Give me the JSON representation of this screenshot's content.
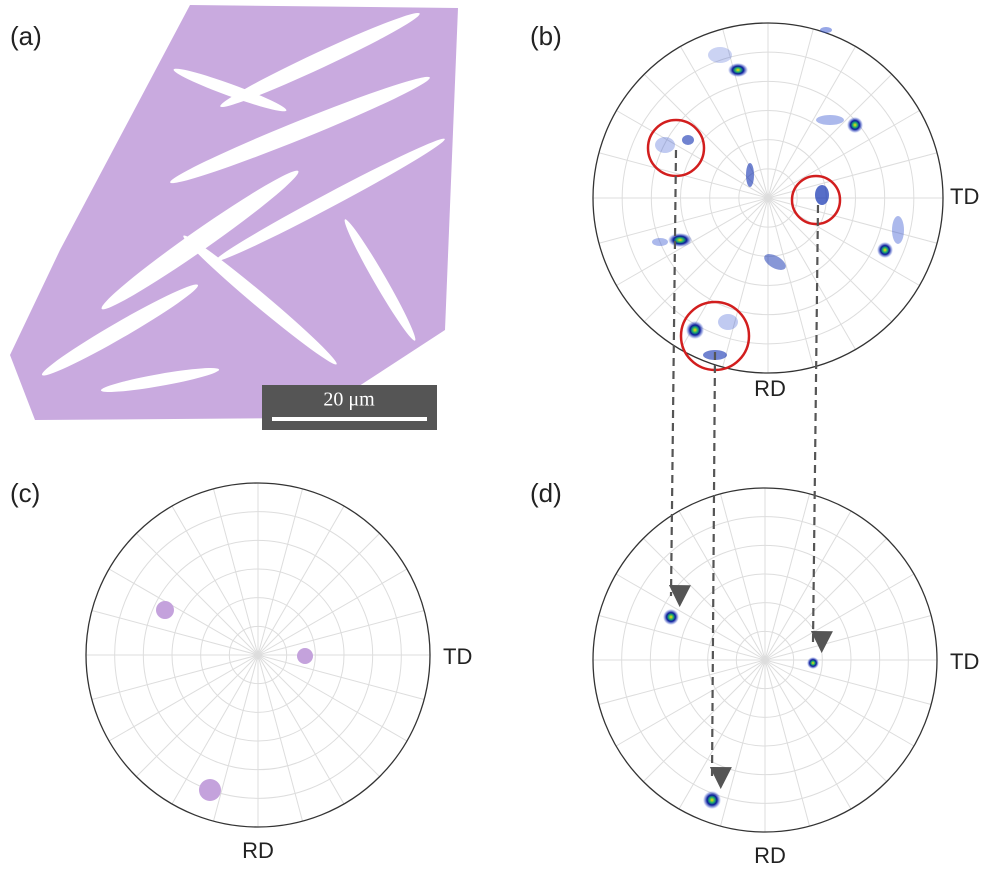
{
  "panels": [
    {
      "label": "(a)",
      "scale_bar": "20 μm"
    },
    {
      "label": "(b)",
      "td": "TD",
      "rd": "RD"
    },
    {
      "label": "(c)",
      "td": "TD",
      "rd": "RD"
    },
    {
      "label": "(d)",
      "td": "TD",
      "rd": "RD"
    }
  ]
}
